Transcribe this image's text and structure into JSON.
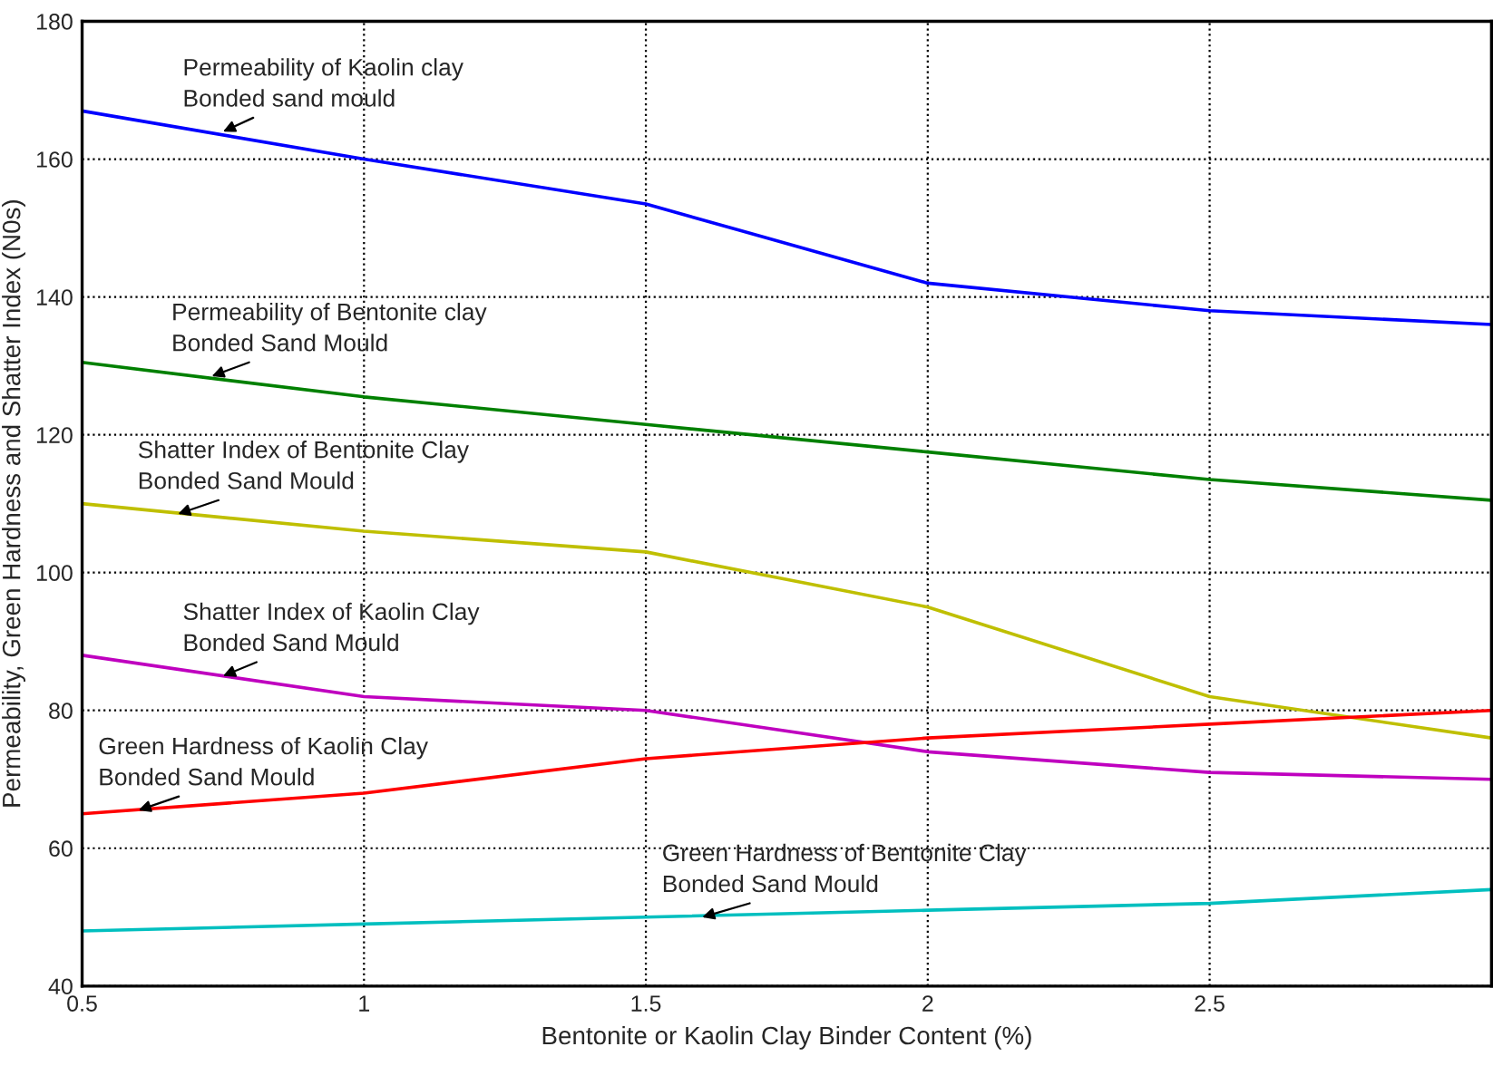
{
  "chart_data": {
    "type": "line",
    "xlabel": "Bentonite or Kaolin Clay Binder Content (%)",
    "ylabel": "Permeability, Green Hardness and Shatter Index (N0s)",
    "x": [
      0.5,
      1,
      1.5,
      2,
      2.5,
      3
    ],
    "series": [
      {
        "color": "#0000ff",
        "values": [
          167,
          160,
          153.5,
          142,
          138,
          136
        ]
      },
      {
        "color": "#008000",
        "values": [
          130.5,
          125.5,
          121.5,
          117.5,
          113.5,
          110.5
        ]
      },
      {
        "color": "#bfbf00",
        "values": [
          110,
          106,
          103,
          95,
          82,
          76
        ]
      },
      {
        "color": "#bf00bf",
        "values": [
          88,
          82,
          80,
          74,
          71,
          70
        ]
      },
      {
        "color": "#ff0000",
        "values": [
          65,
          68,
          73,
          76,
          78,
          80
        ]
      },
      {
        "color": "#00bfbf",
        "values": [
          48,
          49,
          50,
          51,
          52,
          54
        ]
      }
    ],
    "annotations": [
      {
        "text": "Permeability of Kaolin clay\nBonded sand mould",
        "x": 0.75,
        "y": 164
      },
      {
        "text": "Permeability of Bentonite clay\nBonded Sand Mould",
        "x": 0.73,
        "y": 128.5
      },
      {
        "text": "Shatter Index of Bentonite Clay\nBonded Sand Mould",
        "x": 0.67,
        "y": 108.5
      },
      {
        "text": "Shatter Index of Kaolin Clay\nBonded Sand Mould",
        "x": 0.75,
        "y": 85
      },
      {
        "text": "Green Hardness of Kaolin Clay\nBonded Sand Mould",
        "x": 0.6,
        "y": 65.5
      },
      {
        "text": "Green Hardness of Bentonite Clay\nBonded Sand Mould",
        "x": 1.6,
        "y": 50
      }
    ],
    "xlim": [
      0.5,
      3
    ],
    "ylim": [
      40,
      180
    ],
    "xticks": [
      0.5,
      1,
      1.5,
      2,
      2.5
    ],
    "yticks": [
      40,
      60,
      80,
      100,
      120,
      140,
      160,
      180
    ],
    "grid": true,
    "legend": false,
    "marker": "none",
    "line_style": "solid"
  }
}
